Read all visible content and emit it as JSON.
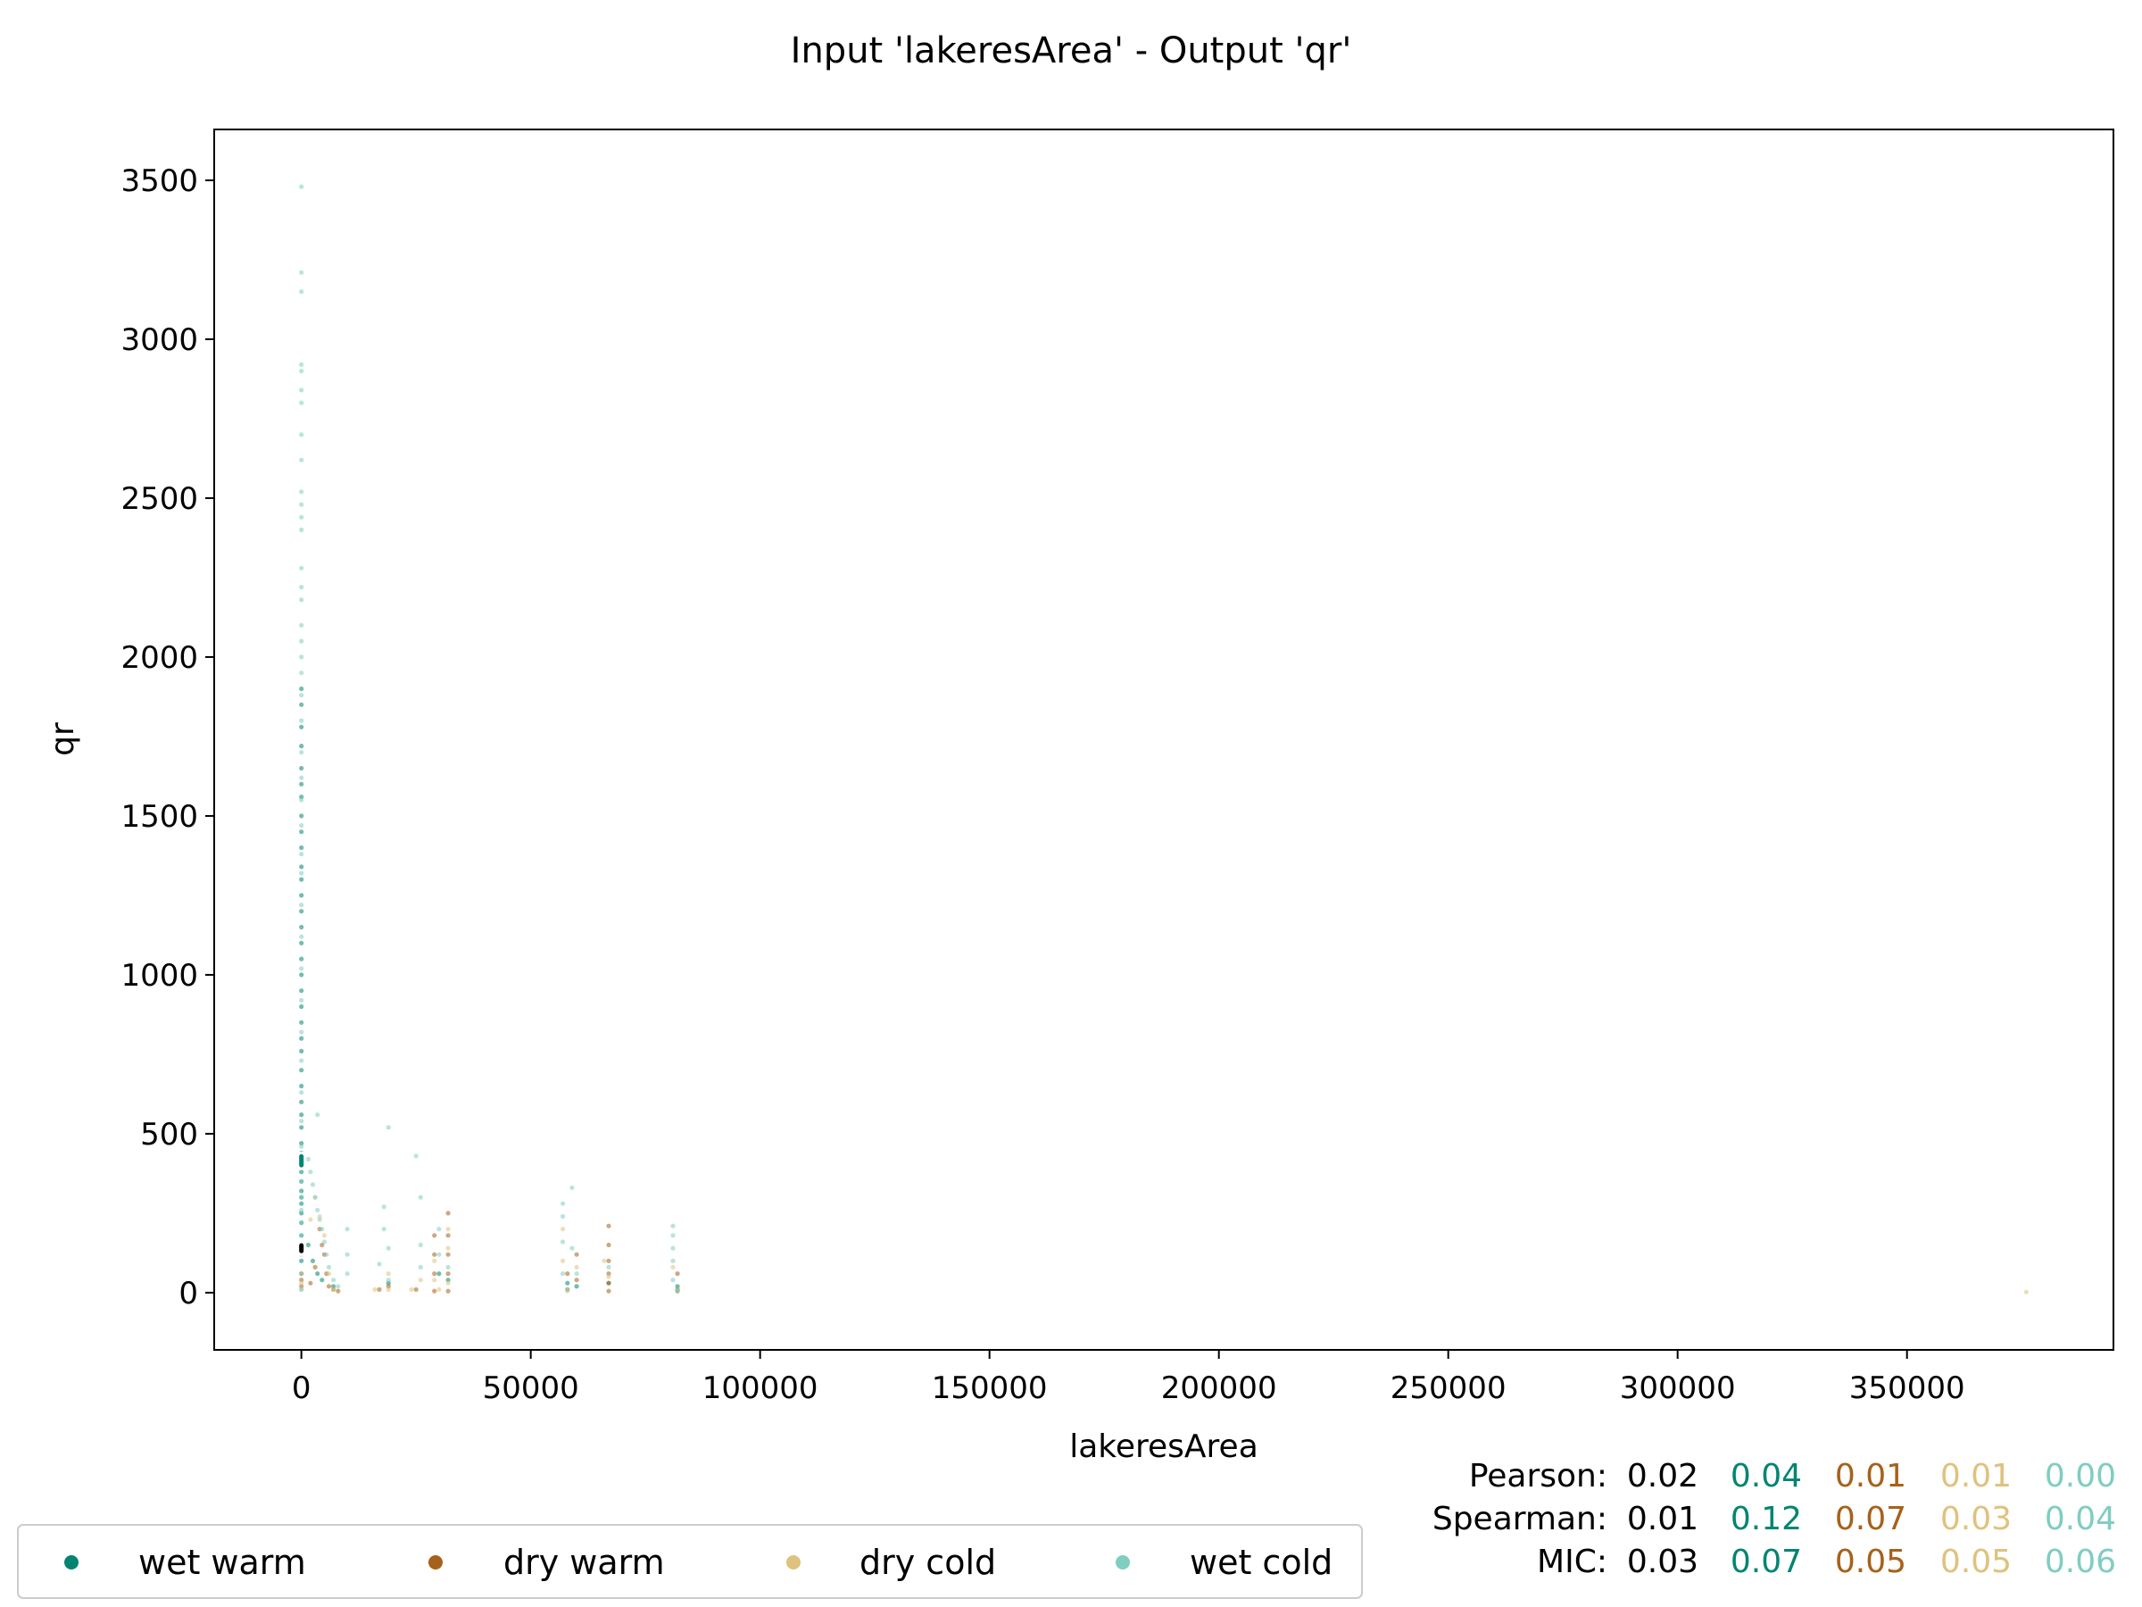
{
  "chart_data": {
    "type": "scatter",
    "title": "Input 'lakeresArea' - Output 'qr'",
    "xlabel": "lakeresArea",
    "ylabel": "qr",
    "xlim": [
      -19000,
      395000
    ],
    "ylim": [
      -180,
      3660
    ],
    "xticks": [
      "0",
      "50000",
      "100000",
      "150000",
      "200000",
      "250000",
      "300000",
      "350000"
    ],
    "yticks": [
      "0",
      "500",
      "1000",
      "1500",
      "2000",
      "2500",
      "3000",
      "3500"
    ],
    "grid": false,
    "legend_position": "bottom-left",
    "series": [
      {
        "name": "wet warm",
        "color": "#018571",
        "points": [
          [
            0,
            1900
          ],
          [
            0,
            1850
          ],
          [
            0,
            1780
          ],
          [
            0,
            1720
          ],
          [
            0,
            1650
          ],
          [
            0,
            1600
          ],
          [
            0,
            1560
          ],
          [
            0,
            1500
          ],
          [
            0,
            1450
          ],
          [
            0,
            1400
          ],
          [
            0,
            1340
          ],
          [
            0,
            1300
          ],
          [
            0,
            1250
          ],
          [
            0,
            1200
          ],
          [
            0,
            1150
          ],
          [
            0,
            1100
          ],
          [
            0,
            1050
          ],
          [
            0,
            1000
          ],
          [
            0,
            950
          ],
          [
            0,
            900
          ],
          [
            0,
            850
          ],
          [
            0,
            800
          ],
          [
            0,
            760
          ],
          [
            0,
            700
          ],
          [
            0,
            650
          ],
          [
            0,
            600
          ],
          [
            0,
            560
          ],
          [
            0,
            520
          ],
          [
            0,
            470
          ],
          [
            0,
            440
          ],
          [
            0,
            420
          ],
          [
            0,
            400
          ],
          [
            0,
            380
          ],
          [
            0,
            350
          ],
          [
            0,
            320
          ],
          [
            0,
            300
          ],
          [
            0,
            280
          ],
          [
            0,
            250
          ],
          [
            0,
            220
          ],
          [
            0,
            180
          ],
          [
            0,
            100
          ],
          [
            1500,
            150
          ],
          [
            2500,
            100
          ],
          [
            3500,
            60
          ],
          [
            4500,
            40
          ],
          [
            7000,
            20
          ],
          [
            19000,
            30
          ],
          [
            30000,
            60
          ],
          [
            32000,
            40
          ],
          [
            58000,
            30
          ],
          [
            60000,
            20
          ],
          [
            67000,
            30
          ],
          [
            82000,
            20
          ],
          [
            82000,
            10
          ]
        ]
      },
      {
        "name": "dry warm",
        "color": "#a6611a",
        "points": [
          [
            0,
            60
          ],
          [
            0,
            40
          ],
          [
            0,
            20
          ],
          [
            2000,
            30
          ],
          [
            3000,
            80
          ],
          [
            4000,
            200
          ],
          [
            4500,
            150
          ],
          [
            5000,
            120
          ],
          [
            5500,
            60
          ],
          [
            6000,
            20
          ],
          [
            7000,
            10
          ],
          [
            8000,
            5
          ],
          [
            17000,
            10
          ],
          [
            19000,
            20
          ],
          [
            25000,
            10
          ],
          [
            29000,
            180
          ],
          [
            29000,
            120
          ],
          [
            29000,
            60
          ],
          [
            29000,
            5
          ],
          [
            32000,
            250
          ],
          [
            32000,
            180
          ],
          [
            32000,
            120
          ],
          [
            32000,
            60
          ],
          [
            32000,
            5
          ],
          [
            58000,
            60
          ],
          [
            58000,
            10
          ],
          [
            60000,
            120
          ],
          [
            60000,
            40
          ],
          [
            67000,
            210
          ],
          [
            67000,
            150
          ],
          [
            67000,
            100
          ],
          [
            67000,
            60
          ],
          [
            67000,
            30
          ],
          [
            67000,
            5
          ],
          [
            82000,
            60
          ],
          [
            82000,
            5
          ]
        ]
      },
      {
        "name": "dry cold",
        "color": "#dfc27d",
        "points": [
          [
            0,
            30
          ],
          [
            0,
            10
          ],
          [
            2000,
            230
          ],
          [
            3000,
            300
          ],
          [
            4000,
            240
          ],
          [
            5000,
            180
          ],
          [
            6000,
            60
          ],
          [
            7000,
            10
          ],
          [
            16000,
            10
          ],
          [
            19000,
            60
          ],
          [
            19000,
            10
          ],
          [
            24000,
            10
          ],
          [
            26000,
            40
          ],
          [
            29000,
            100
          ],
          [
            29000,
            40
          ],
          [
            30000,
            10
          ],
          [
            32000,
            200
          ],
          [
            32000,
            140
          ],
          [
            32000,
            30
          ],
          [
            57000,
            200
          ],
          [
            57000,
            100
          ],
          [
            58000,
            5
          ],
          [
            60000,
            80
          ],
          [
            66000,
            100
          ],
          [
            67000,
            50
          ],
          [
            81000,
            80
          ],
          [
            82000,
            10
          ],
          [
            376000,
            2
          ]
        ]
      },
      {
        "name": "wet cold",
        "color": "#80cdc1",
        "points": [
          [
            0,
            3480
          ],
          [
            0,
            3210
          ],
          [
            0,
            3150
          ],
          [
            0,
            2920
          ],
          [
            0,
            2900
          ],
          [
            0,
            2840
          ],
          [
            0,
            2800
          ],
          [
            0,
            2700
          ],
          [
            0,
            2620
          ],
          [
            0,
            2520
          ],
          [
            0,
            2480
          ],
          [
            0,
            2440
          ],
          [
            0,
            2400
          ],
          [
            0,
            2280
          ],
          [
            0,
            2220
          ],
          [
            0,
            2180
          ],
          [
            0,
            2100
          ],
          [
            0,
            2050
          ],
          [
            0,
            2000
          ],
          [
            0,
            1950
          ],
          [
            0,
            1880
          ],
          [
            0,
            1800
          ],
          [
            0,
            1700
          ],
          [
            0,
            1620
          ],
          [
            0,
            1550
          ],
          [
            0,
            1470
          ],
          [
            0,
            1380
          ],
          [
            0,
            1320
          ],
          [
            0,
            1220
          ],
          [
            0,
            1120
          ],
          [
            0,
            1020
          ],
          [
            0,
            920
          ],
          [
            0,
            820
          ],
          [
            0,
            730
          ],
          [
            0,
            630
          ],
          [
            0,
            540
          ],
          [
            0,
            460
          ],
          [
            0,
            400
          ],
          [
            0,
            350
          ],
          [
            0,
            300
          ],
          [
            0,
            260
          ],
          [
            0,
            220
          ],
          [
            0,
            180
          ],
          [
            0,
            120
          ],
          [
            0,
            60
          ],
          [
            0,
            10
          ],
          [
            1500,
            420
          ],
          [
            2000,
            380
          ],
          [
            2500,
            340
          ],
          [
            3000,
            300
          ],
          [
            3500,
            260
          ],
          [
            3500,
            560
          ],
          [
            4000,
            230
          ],
          [
            4500,
            200
          ],
          [
            5000,
            160
          ],
          [
            5500,
            120
          ],
          [
            6000,
            80
          ],
          [
            7000,
            40
          ],
          [
            8000,
            20
          ],
          [
            10000,
            200
          ],
          [
            10000,
            120
          ],
          [
            10000,
            60
          ],
          [
            17000,
            90
          ],
          [
            18000,
            270
          ],
          [
            18000,
            200
          ],
          [
            19000,
            520
          ],
          [
            19000,
            140
          ],
          [
            19000,
            40
          ],
          [
            25000,
            430
          ],
          [
            26000,
            300
          ],
          [
            26000,
            150
          ],
          [
            26000,
            80
          ],
          [
            30000,
            200
          ],
          [
            30000,
            120
          ],
          [
            32000,
            80
          ],
          [
            57000,
            280
          ],
          [
            57000,
            240
          ],
          [
            57000,
            160
          ],
          [
            57000,
            60
          ],
          [
            58000,
            10
          ],
          [
            59000,
            330
          ],
          [
            59000,
            140
          ],
          [
            60000,
            60
          ],
          [
            67000,
            80
          ],
          [
            81000,
            210
          ],
          [
            81000,
            180
          ],
          [
            81000,
            140
          ],
          [
            81000,
            100
          ],
          [
            81000,
            40
          ],
          [
            82000,
            5
          ]
        ]
      }
    ],
    "overlays": [
      {
        "name": "wet warm",
        "color": "#018571",
        "x": 0,
        "y": [
          390,
          440
        ]
      },
      {
        "name": "overall",
        "color": "#000000",
        "x": 0,
        "y": [
          120,
          160
        ]
      }
    ],
    "stats": {
      "rows": [
        {
          "label": "Pearson:",
          "values": [
            "0.02",
            "0.04",
            "0.01",
            "0.01",
            "0.00"
          ]
        },
        {
          "label": "Spearman:",
          "values": [
            "0.01",
            "0.12",
            "0.07",
            "0.03",
            "0.04"
          ]
        },
        {
          "label": "MIC:",
          "values": [
            "0.03",
            "0.07",
            "0.05",
            "0.05",
            "0.06"
          ]
        }
      ],
      "colors": [
        "#000000",
        "#018571",
        "#a6611a",
        "#dfc27d",
        "#80cdc1"
      ]
    }
  }
}
